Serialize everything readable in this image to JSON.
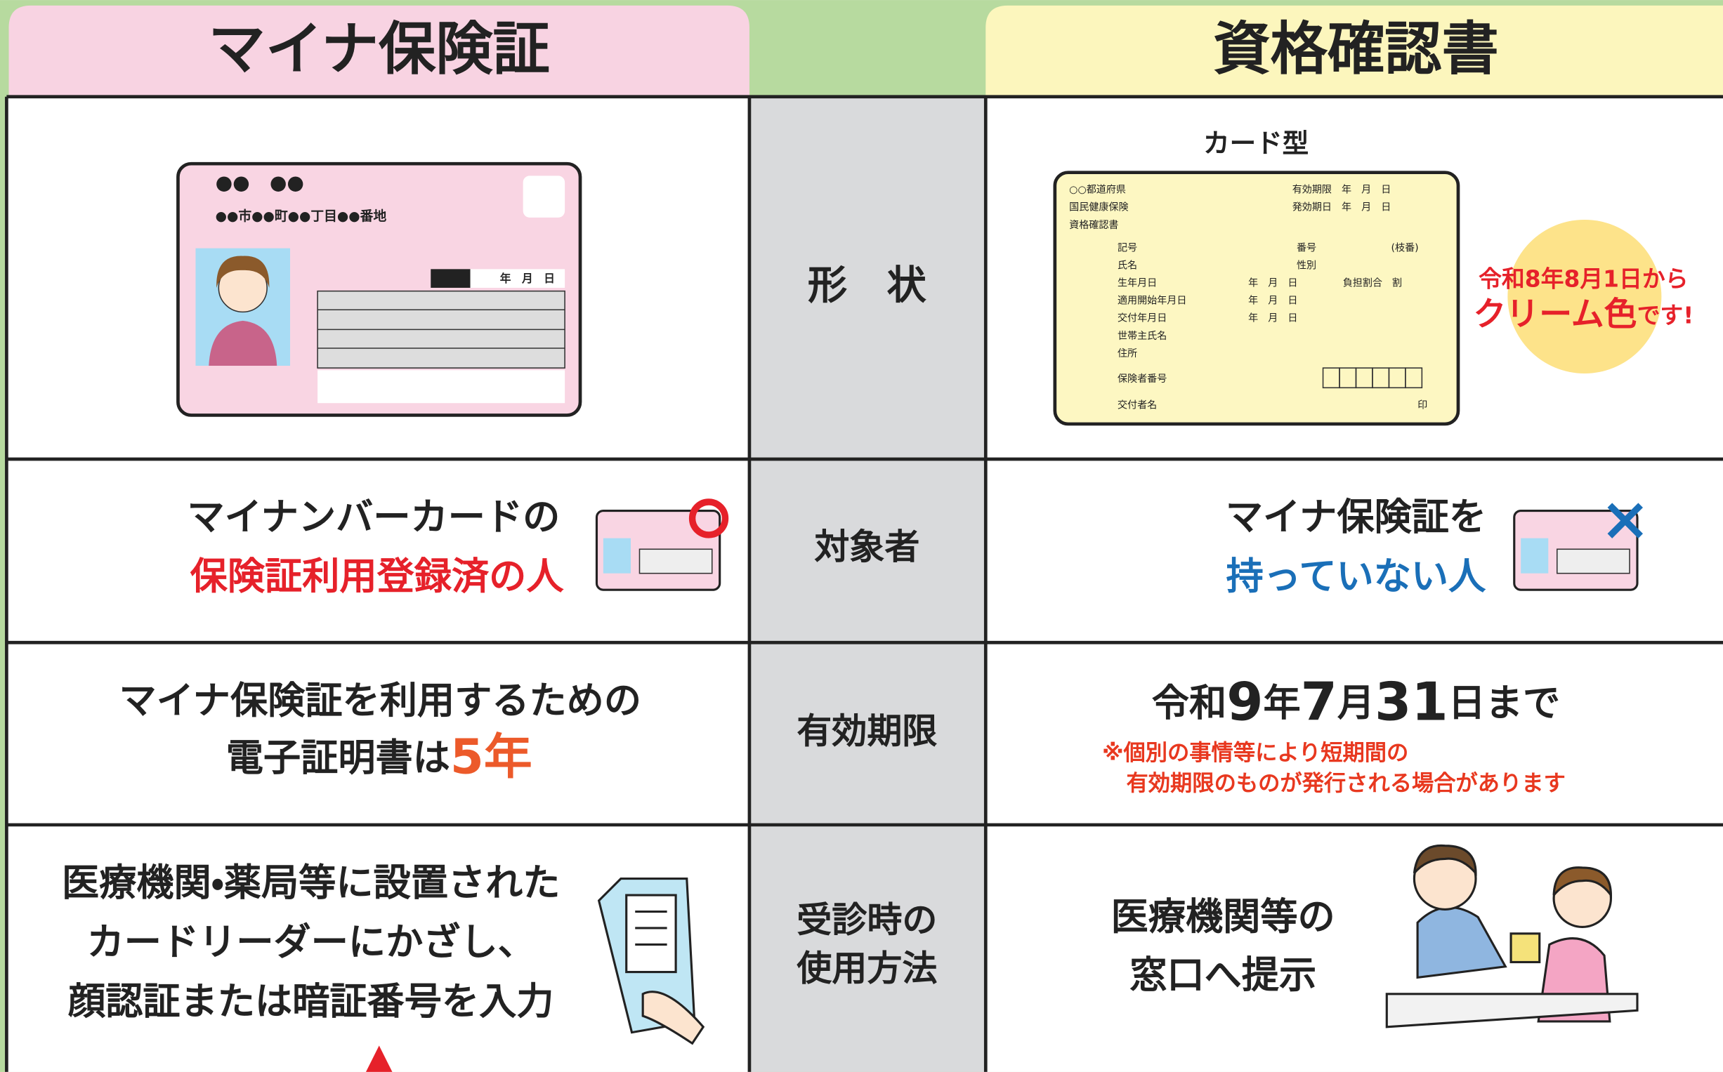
{
  "header": {
    "left_title": "マイナ保険証",
    "right_title": "資格確認書"
  },
  "rows": [
    {
      "label": "形　状",
      "right_caption": "カード型",
      "note": [
        "令和8年8月1日から",
        "クリーム色",
        "です!"
      ]
    },
    {
      "label": "対象者",
      "left": [
        "マイナンバーカードの",
        "保険証利用登録済の人"
      ],
      "right": [
        "マイナ保険証を",
        "持っていない人"
      ]
    },
    {
      "label": "有効期限",
      "left": [
        "マイナ保険証を利用するための",
        "電子証明書は",
        "5年"
      ],
      "right": [
        "令和",
        "9",
        "年",
        "7",
        "月",
        "31",
        "日まで"
      ],
      "right_note": [
        "※個別の事情等により短期間の",
        "有効期限のものが発行される場合があります"
      ]
    },
    {
      "label": [
        "受診時の",
        "使用方法"
      ],
      "left": [
        "医療機関・薬局等に設置された",
        "カードリーダーにかざし、",
        "顔認証または暗証番号を入力"
      ],
      "right": [
        "医療機関等の",
        "窓口へ提示"
      ]
    }
  ],
  "mynumber_card": {
    "name": "●●　●●",
    "address": "●●市●●町●●丁目●●番地",
    "date": "年　月　日"
  },
  "qualification_card": [
    "○○都道府県",
    "国民健康保険",
    "資格確認書",
    "有効期限　年　月　日",
    "発効期日　年　月　日",
    "記号",
    "番号",
    "(枝番)",
    "氏名",
    "性別",
    "生年月日",
    "年　月　日",
    "負担割合　割",
    "適用開始年月日",
    "年　月　日",
    "交付年月日",
    "年　月　日",
    "世帯主氏名",
    "住所",
    "保険者番号",
    "交付者名",
    "印"
  ]
}
